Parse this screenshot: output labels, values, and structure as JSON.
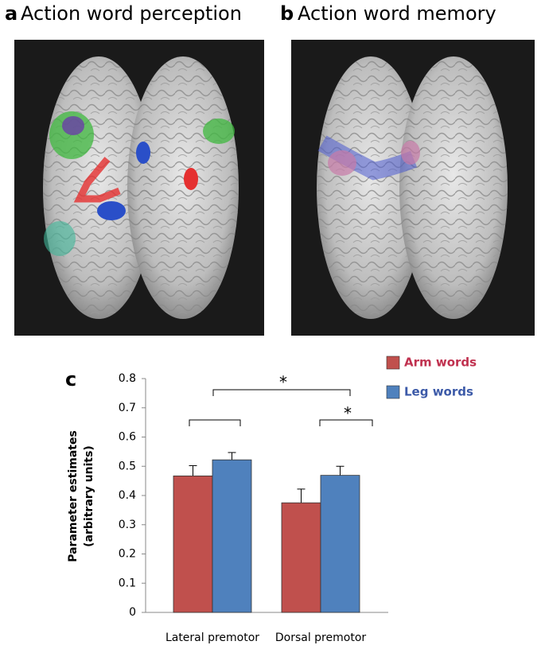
{
  "panels": [
    {
      "letter": "a",
      "title": "Action word perception"
    },
    {
      "letter": "b",
      "title": "Action word memory"
    }
  ],
  "chart_data": {
    "type": "bar",
    "panel_letter": "c",
    "ylabel_lines": [
      "Parameter estimates",
      "(arbitrary units)"
    ],
    "categories": [
      "Lateral premotor",
      "Dorsal premotor"
    ],
    "series": [
      {
        "name": "Arm words",
        "color": "#c0504d",
        "label_color": "#c0314f",
        "values": [
          0.467,
          0.375
        ],
        "errors": [
          0.035,
          0.047
        ]
      },
      {
        "name": "Leg words",
        "color": "#4f81bd",
        "label_color": "#3c5aa8",
        "values": [
          0.522,
          0.469
        ],
        "errors": [
          0.025,
          0.031
        ]
      }
    ],
    "ylim": [
      0,
      0.8
    ],
    "yticks": [
      0,
      0.1,
      0.2,
      0.3,
      0.4,
      0.5,
      0.6,
      0.7,
      0.8
    ],
    "annotations": [
      "*",
      "*"
    ]
  }
}
